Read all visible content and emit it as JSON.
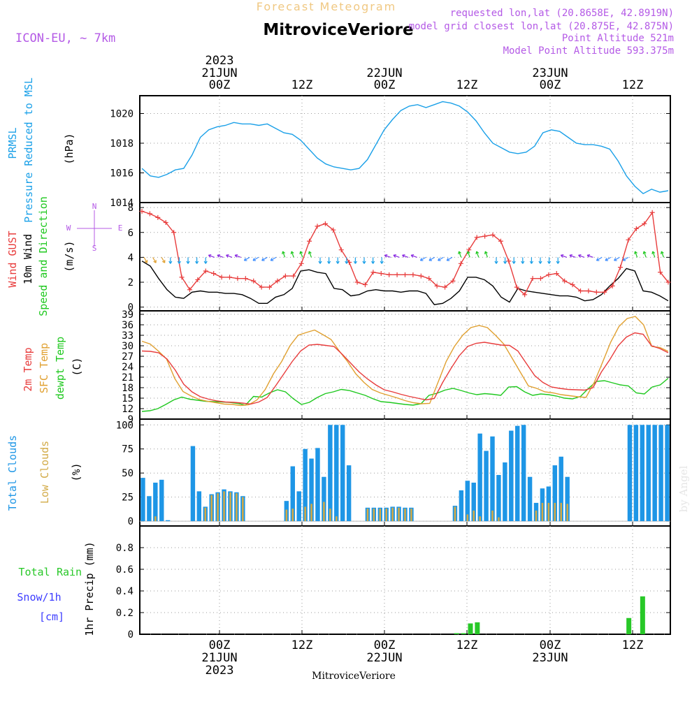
{
  "header": {
    "top_title": "Forecast Meteogram",
    "station": "MitroviceVeriore",
    "model": "ICON-EU, ~ 7km",
    "info": [
      "requested lon,lat (20.8658E, 42.8919N)",
      "model grid closest lon,lat (20.875E, 42.875N)",
      "Point Altitude 521m",
      "Model Point Altitude 593.375m"
    ],
    "footer_station": "MitroviceVeriore",
    "watermark": "by Angel"
  },
  "time_axis": {
    "top_year": "2023",
    "days": [
      {
        "date": "21JUN",
        "hour": "00Z"
      },
      {
        "date": "22JUN",
        "hour": "00Z"
      },
      {
        "date": "23JUN",
        "hour": "00Z"
      }
    ],
    "noon_label": "12Z",
    "bottom_year": "2023"
  },
  "panel_labels": {
    "pressure": [
      "PRMSL",
      "Pressure Reduced to MSL",
      "(hPa)"
    ],
    "wind": [
      "Wind GUST",
      "10m Wind",
      "Speed and Direction",
      "(m/s)"
    ],
    "compass": [
      "N",
      "S",
      "W",
      "E"
    ],
    "temp": [
      "2m Temp",
      "SFC Temp",
      "dewpt Temp",
      "(C)"
    ],
    "clouds": [
      "Total Clouds",
      "Low Clouds",
      "(%)"
    ],
    "precip": [
      "Total",
      "Rain",
      "Snow/1h",
      "[cm]",
      "1hr Precip (mm)"
    ]
  },
  "colors": {
    "pressure": "#1aa0e8",
    "gust": "#e83c3c",
    "wind": "#000000",
    "temp2m": "#e83c3c",
    "sfc": "#e0a030",
    "dewpt": "#1ec81e",
    "total_clouds": "#1e96e6",
    "low_clouds": "#d2aa46",
    "rain": "#28c828",
    "snow": "#3c3cff",
    "label_purple": "#b45ae6",
    "title_gold": "#f0c882"
  },
  "chart_data": [
    {
      "type": "line",
      "panel": "pressure",
      "x_start": "2023-06-20T14:00Z",
      "x_end": "2023-06-23T14:00Z",
      "ylabel": "(hPa)",
      "ylim": [
        1014,
        1021.2
      ],
      "yticks": [
        1014,
        1016,
        1018,
        1020
      ],
      "grid": true,
      "series": [
        {
          "name": "PRMSL",
          "values": [
            1016.3,
            1015.8,
            1015.7,
            1015.9,
            1016.2,
            1016.3,
            1017.2,
            1018.4,
            1018.9,
            1019.1,
            1019.2,
            1019.4,
            1019.3,
            1019.3,
            1019.2,
            1019.3,
            1019.0,
            1018.7,
            1018.6,
            1018.2,
            1017.6,
            1017.0,
            1016.6,
            1016.4,
            1016.3,
            1016.2,
            1016.3,
            1016.9,
            1017.9,
            1018.9,
            1019.6,
            1020.2,
            1020.5,
            1020.6,
            1020.4,
            1020.6,
            1020.8,
            1020.7,
            1020.5,
            1020.1,
            1019.5,
            1018.7,
            1018.0,
            1017.7,
            1017.4,
            1017.3,
            1017.4,
            1017.8,
            1018.7,
            1018.9,
            1018.8,
            1018.4,
            1018.0,
            1017.9,
            1017.9,
            1017.8,
            1017.6,
            1016.8,
            1015.8,
            1015.1,
            1014.6,
            1014.9,
            1014.7,
            1014.8
          ]
        }
      ]
    },
    {
      "type": "line",
      "panel": "wind",
      "x_start": "2023-06-20T14:00Z",
      "x_end": "2023-06-23T14:00Z",
      "ylabel": "(m/s)",
      "ylim": [
        -0.3,
        8.4
      ],
      "yticks": [
        0,
        2,
        4,
        6,
        8
      ],
      "grid": true,
      "series": [
        {
          "name": "Wind GUST",
          "values": [
            7.7,
            7.5,
            7.2,
            6.8,
            6.0,
            2.4,
            1.4,
            2.2,
            2.9,
            2.7,
            2.4,
            2.4,
            2.3,
            2.3,
            2.1,
            1.6,
            1.6,
            2.1,
            2.5,
            2.5,
            3.5,
            5.3,
            6.5,
            6.7,
            6.2,
            4.6,
            3.6,
            2.0,
            1.8,
            2.8,
            2.7,
            2.6,
            2.6,
            2.6,
            2.6,
            2.5,
            2.3,
            1.7,
            1.6,
            2.1,
            3.5,
            4.6,
            5.6,
            5.7,
            5.8,
            5.3,
            3.7,
            1.6,
            1.0,
            2.3,
            2.3,
            2.6,
            2.7,
            2.1,
            1.8,
            1.3,
            1.3,
            1.2,
            1.2,
            1.7,
            3.2,
            5.4,
            6.3,
            6.7,
            7.6,
            2.8,
            2.0
          ]
        },
        {
          "name": "10m Wind",
          "values": [
            3.7,
            3.3,
            2.3,
            1.4,
            0.8,
            0.7,
            1.2,
            1.3,
            1.2,
            1.2,
            1.1,
            1.1,
            1.0,
            0.7,
            0.3,
            0.3,
            0.8,
            1.0,
            1.5,
            2.9,
            3.0,
            2.8,
            2.7,
            1.5,
            1.4,
            0.9,
            1.0,
            1.3,
            1.4,
            1.3,
            1.3,
            1.2,
            1.3,
            1.3,
            1.1,
            0.2,
            0.3,
            0.7,
            1.3,
            2.4,
            2.4,
            2.2,
            1.7,
            0.8,
            0.4,
            1.5,
            1.3,
            1.2,
            1.1,
            1.0,
            0.9,
            0.9,
            0.8,
            0.5,
            0.6,
            1.0,
            1.7,
            2.3,
            3.1,
            2.9,
            1.3,
            1.2,
            0.9,
            0.5
          ]
        }
      ]
    },
    {
      "type": "line",
      "panel": "temperature",
      "x_start": "2023-06-20T14:00Z",
      "x_end": "2023-06-23T14:00Z",
      "ylabel": "(C)",
      "ylim": [
        9,
        40
      ],
      "yticks": [
        9,
        12,
        15,
        18,
        21,
        24,
        27,
        30,
        33,
        36,
        39
      ],
      "grid": true,
      "series": [
        {
          "name": "2m Temp",
          "values": [
            28.5,
            28.4,
            28.0,
            26.2,
            23.0,
            19.0,
            16.8,
            15.4,
            14.7,
            14.2,
            13.9,
            13.8,
            13.6,
            13.3,
            13.9,
            15.2,
            18.5,
            22.0,
            25.5,
            28.5,
            30.2,
            30.4,
            30.1,
            29.8,
            27.5,
            25.0,
            22.5,
            20.5,
            18.8,
            17.4,
            16.8,
            16.1,
            15.5,
            15.0,
            14.5,
            14.9,
            19.5,
            23.5,
            27.2,
            29.8,
            30.7,
            31.0,
            30.6,
            30.2,
            30.1,
            28.5,
            25.0,
            21.5,
            19.5,
            18.2,
            17.8,
            17.5,
            17.4,
            17.3,
            18.0,
            22.5,
            26.0,
            30.0,
            32.5,
            33.7,
            33.3,
            30.0,
            29.2,
            28.0
          ]
        },
        {
          "name": "SFC Temp",
          "values": [
            31.3,
            30.5,
            28.5,
            26.2,
            20.6,
            16.9,
            15.6,
            14.6,
            14.1,
            13.7,
            13.3,
            13.2,
            12.9,
            13.1,
            14.5,
            17.5,
            22.0,
            25.5,
            30.0,
            33.0,
            33.8,
            34.5,
            33.2,
            31.8,
            28.5,
            25.5,
            22.0,
            19.5,
            17.5,
            16.5,
            15.8,
            15.1,
            14.3,
            13.7,
            13.4,
            13.5,
            19.5,
            25.5,
            29.8,
            33.0,
            35.2,
            35.8,
            35.2,
            33.0,
            30.5,
            26.5,
            22.5,
            18.5,
            17.8,
            16.8,
            16.5,
            16.0,
            15.7,
            15.4,
            15.2,
            19.5,
            25.2,
            31.0,
            35.5,
            37.8,
            38.4,
            36.0,
            29.8,
            29.5,
            28.4
          ]
        },
        {
          "name": "dewpt Temp",
          "values": [
            11.2,
            11.4,
            12.0,
            13.2,
            14.5,
            15.3,
            14.7,
            14.4,
            14.1,
            14.0,
            13.9,
            13.8,
            13.5,
            13.0,
            15.5,
            15.3,
            16.5,
            17.4,
            16.8,
            14.8,
            13.2,
            13.8,
            15.2,
            16.3,
            16.8,
            17.5,
            17.2,
            16.5,
            15.8,
            14.8,
            14.0,
            13.8,
            13.5,
            13.2,
            13.0,
            13.4,
            15.8,
            16.4,
            17.3,
            17.8,
            17.2,
            16.5,
            16.0,
            16.3,
            16.1,
            15.8,
            18.2,
            18.3,
            16.8,
            15.8,
            16.2,
            16.0,
            15.6,
            15.0,
            14.8,
            15.5,
            17.8,
            19.8,
            20.0,
            19.4,
            18.8,
            18.5,
            16.5,
            16.2,
            18.2,
            18.8,
            20.7
          ]
        }
      ]
    },
    {
      "type": "bar",
      "panel": "clouds",
      "x_start": "2023-06-20T14:00Z",
      "x_end": "2023-06-23T14:00Z",
      "ylabel": "(%)",
      "ylim": [
        -5,
        106
      ],
      "yticks": [
        0,
        25,
        50,
        75,
        100
      ],
      "grid": true,
      "series": [
        {
          "name": "Total Clouds",
          "values": [
            45,
            26,
            40,
            43,
            1,
            0,
            0,
            0,
            78,
            31,
            15,
            28,
            30,
            33,
            31,
            30,
            26,
            0,
            0,
            0,
            0,
            0,
            0,
            21,
            57,
            31,
            75,
            65,
            76,
            46,
            100,
            100,
            100,
            58,
            0,
            0,
            14,
            14,
            14,
            14,
            15,
            15,
            14,
            14,
            0,
            0,
            0,
            0,
            0,
            0,
            16,
            32,
            42,
            40,
            91,
            73,
            88,
            48,
            61,
            94,
            99,
            100,
            46,
            19,
            34,
            36,
            58,
            67,
            46,
            0,
            0,
            0,
            0,
            0,
            0,
            0,
            0,
            0,
            100,
            100,
            100,
            100,
            100,
            100,
            100
          ]
        },
        {
          "name": "Low Clouds",
          "values": [
            0,
            0,
            5,
            0,
            0,
            0,
            0,
            0,
            0,
            0,
            14,
            27,
            29,
            31,
            30,
            29,
            25,
            0,
            0,
            0,
            0,
            0,
            0,
            12,
            13,
            0,
            15,
            18,
            0,
            20,
            13,
            5,
            0,
            0,
            0,
            0,
            13,
            13,
            13,
            13,
            14,
            14,
            13,
            13,
            0,
            0,
            0,
            0,
            0,
            0,
            15,
            0,
            7,
            11,
            5,
            0,
            11,
            4,
            0,
            0,
            0,
            0,
            0,
            11,
            19,
            19,
            19,
            19,
            18,
            0,
            0,
            0,
            0,
            0,
            0,
            0,
            0,
            0,
            0,
            0,
            0,
            0,
            0,
            0,
            0
          ]
        }
      ]
    },
    {
      "type": "bar",
      "panel": "precip",
      "x_start": "2023-06-20T14:00Z",
      "x_end": "2023-06-23T14:00Z",
      "ylabel": "1hr Precip (mm)",
      "ylim": [
        0,
        1.0
      ],
      "yticks": [
        0,
        0.2,
        0.4,
        0.6,
        0.8
      ],
      "grid": true,
      "series": [
        {
          "name": "Total Rain",
          "points": [
            {
              "t": "2023-06-22T12:00Z",
              "v": 0.01
            },
            {
              "t": "2023-06-22T13:00Z",
              "v": 0.01
            },
            {
              "t": "2023-06-22T14:00Z",
              "v": 0.1
            },
            {
              "t": "2023-06-22T15:00Z",
              "v": 0.11
            },
            {
              "t": "2023-06-23T13:00Z",
              "v": 0.15
            },
            {
              "t": "2023-06-23T15:00Z",
              "v": 0.35
            }
          ]
        }
      ]
    }
  ]
}
